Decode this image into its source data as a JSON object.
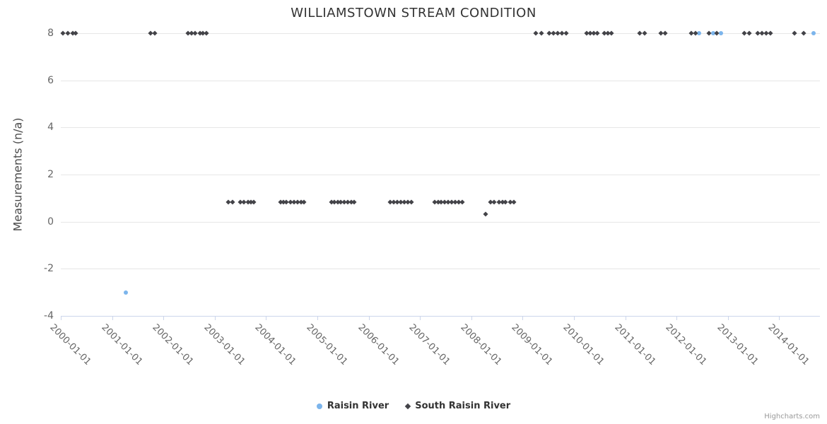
{
  "credits": "Highcharts.com",
  "chart_data": {
    "type": "scatter",
    "title": "WILLIAMSTOWN STREAM CONDITION",
    "xlabel": "",
    "ylabel": "Measurements (n/a)",
    "ylim": [
      -4,
      8
    ],
    "yticks": [
      8,
      6,
      4,
      2,
      0,
      -2,
      -4
    ],
    "xticks": [
      "2000-01-01",
      "2001-01-01",
      "2002-01-01",
      "2003-01-01",
      "2004-01-01",
      "2005-01-01",
      "2006-01-01",
      "2007-01-01",
      "2008-01-01",
      "2009-01-01",
      "2010-01-01",
      "2011-01-01",
      "2012-01-01",
      "2013-01-01",
      "2014-01-01"
    ],
    "grid": true,
    "legend_position": "bottom",
    "series": [
      {
        "name": "Raisin River",
        "color": "#7cb5ec",
        "marker": "circle",
        "points": [
          [
            "2001-04-05",
            -3
          ],
          [
            "2012-06-10",
            8
          ],
          [
            "2012-09-18",
            8
          ],
          [
            "2012-11-14",
            8
          ],
          [
            "2014-09-04",
            8
          ]
        ]
      },
      {
        "name": "South Raisin River",
        "color": "#434348",
        "marker": "diamond",
        "points": [
          [
            "2000-01-18",
            8
          ],
          [
            "2000-02-22",
            8
          ],
          [
            "2000-03-28",
            8
          ],
          [
            "2000-04-17",
            8
          ],
          [
            "2001-10-03",
            8
          ],
          [
            "2001-11-02",
            8
          ],
          [
            "2002-06-26",
            8
          ],
          [
            "2002-07-21",
            8
          ],
          [
            "2002-08-15",
            8
          ],
          [
            "2002-09-20",
            8
          ],
          [
            "2002-10-09",
            8
          ],
          [
            "2002-11-03",
            8
          ],
          [
            "2003-04-05",
            0.84
          ],
          [
            "2003-05-05",
            0.84
          ],
          [
            "2003-06-29",
            0.84
          ],
          [
            "2003-07-24",
            0.84
          ],
          [
            "2003-08-23",
            0.84
          ],
          [
            "2003-09-17",
            0.84
          ],
          [
            "2003-10-07",
            0.84
          ],
          [
            "2004-04-11",
            0.84
          ],
          [
            "2004-05-01",
            0.84
          ],
          [
            "2004-05-21",
            0.84
          ],
          [
            "2004-06-25",
            0.84
          ],
          [
            "2004-07-20",
            0.84
          ],
          [
            "2004-08-14",
            0.84
          ],
          [
            "2004-09-09",
            0.84
          ],
          [
            "2004-09-29",
            0.84
          ],
          [
            "2005-04-08",
            0.84
          ],
          [
            "2005-04-28",
            0.84
          ],
          [
            "2005-05-23",
            0.84
          ],
          [
            "2005-06-17",
            0.84
          ],
          [
            "2005-07-12",
            0.84
          ],
          [
            "2005-08-06",
            0.84
          ],
          [
            "2005-08-31",
            0.84
          ],
          [
            "2005-09-20",
            0.84
          ],
          [
            "2006-06-02",
            0.84
          ],
          [
            "2006-06-27",
            0.84
          ],
          [
            "2006-07-22",
            0.84
          ],
          [
            "2006-08-16",
            0.84
          ],
          [
            "2006-09-10",
            0.84
          ],
          [
            "2006-10-05",
            0.84
          ],
          [
            "2006-11-01",
            0.84
          ],
          [
            "2007-04-12",
            0.84
          ],
          [
            "2007-05-07",
            0.84
          ],
          [
            "2007-06-01",
            0.84
          ],
          [
            "2007-06-26",
            0.84
          ],
          [
            "2007-07-21",
            0.84
          ],
          [
            "2007-08-15",
            0.84
          ],
          [
            "2007-09-09",
            0.84
          ],
          [
            "2007-10-04",
            0.84
          ],
          [
            "2007-10-29",
            0.84
          ],
          [
            "2008-04-13",
            0.33
          ],
          [
            "2008-05-18",
            0.84
          ],
          [
            "2008-06-12",
            0.84
          ],
          [
            "2008-07-17",
            0.84
          ],
          [
            "2008-08-11",
            0.84
          ],
          [
            "2008-09-01",
            0.84
          ],
          [
            "2008-10-06",
            0.84
          ],
          [
            "2008-10-31",
            0.84
          ],
          [
            "2009-04-05",
            8
          ],
          [
            "2009-05-15",
            8
          ],
          [
            "2009-07-09",
            8
          ],
          [
            "2009-08-09",
            8
          ],
          [
            "2009-09-09",
            8
          ],
          [
            "2009-10-09",
            8
          ],
          [
            "2009-11-08",
            8
          ],
          [
            "2010-04-02",
            8
          ],
          [
            "2010-04-27",
            8
          ],
          [
            "2010-05-22",
            8
          ],
          [
            "2010-06-17",
            8
          ],
          [
            "2010-08-06",
            8
          ],
          [
            "2010-08-31",
            8
          ],
          [
            "2010-09-25",
            8
          ],
          [
            "2011-04-10",
            8
          ],
          [
            "2011-05-15",
            8
          ],
          [
            "2011-09-12",
            8
          ],
          [
            "2011-10-12",
            8
          ],
          [
            "2012-04-16",
            8
          ],
          [
            "2012-05-16",
            8
          ],
          [
            "2012-08-19",
            8
          ],
          [
            "2012-10-13",
            8
          ],
          [
            "2013-04-28",
            8
          ],
          [
            "2013-06-02",
            8
          ],
          [
            "2013-08-01",
            8
          ],
          [
            "2013-09-01",
            8
          ],
          [
            "2013-10-01",
            8
          ],
          [
            "2013-10-31",
            8
          ],
          [
            "2014-04-20",
            8
          ],
          [
            "2014-06-24",
            8
          ]
        ]
      }
    ]
  }
}
